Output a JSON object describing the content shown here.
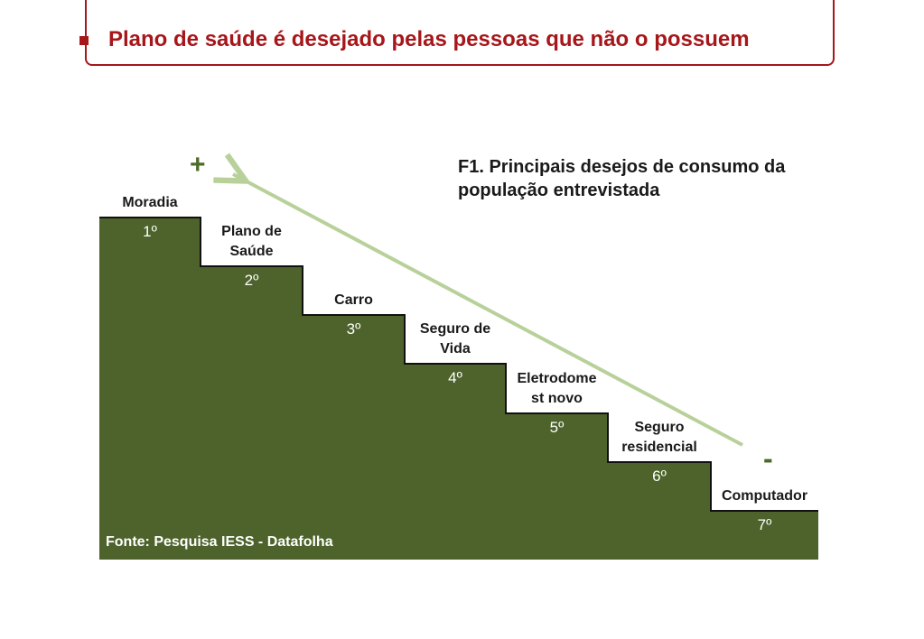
{
  "header": {
    "title": "Plano de saúde é desejado pelas pessoas que não o possuem"
  },
  "figure": {
    "title_line1": "F1. Principais desejos de consumo da",
    "title_line2": "população entrevistada",
    "source": "Fonte: Pesquisa IESS - Datafolha",
    "plus_sign": "+",
    "minus_sign": "-",
    "colors": {
      "fill": "#4d632b",
      "arrow": "#b8d19a",
      "accent": "#a6161a"
    },
    "steps": [
      {
        "lines": [
          "Moradia"
        ],
        "rank": "1º"
      },
      {
        "lines": [
          "Plano de",
          "Saúde"
        ],
        "rank": "2º"
      },
      {
        "lines": [
          "Carro"
        ],
        "rank": "3º"
      },
      {
        "lines": [
          "Seguro de",
          "Vida"
        ],
        "rank": "4º"
      },
      {
        "lines": [
          "Eletrodome",
          "st novo"
        ],
        "rank": "5º"
      },
      {
        "lines": [
          "Seguro",
          "residencial"
        ],
        "rank": "6º"
      },
      {
        "lines": [
          "Computador"
        ],
        "rank": "7º"
      }
    ]
  }
}
